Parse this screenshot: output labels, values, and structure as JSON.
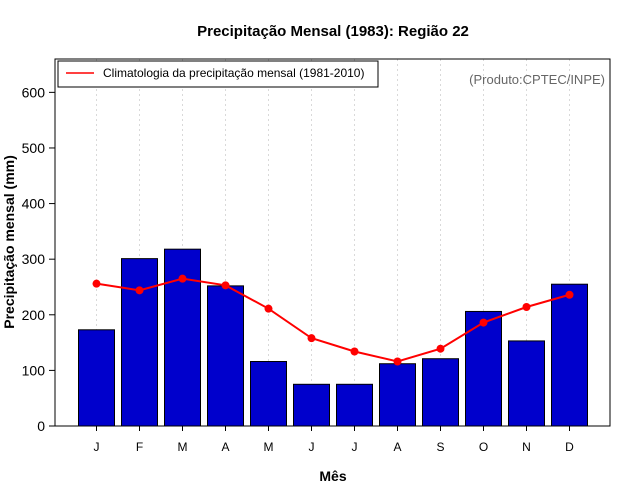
{
  "chart_data": {
    "type": "bar",
    "title": "Precipitação Mensal (1983): Região 22",
    "xlabel": "Mês",
    "ylabel": "Precipitação mensal (mm)",
    "categories": [
      "J",
      "F",
      "M",
      "A",
      "M",
      "J",
      "J",
      "A",
      "S",
      "O",
      "N",
      "D"
    ],
    "ylim": [
      0,
      660
    ],
    "yticks": [
      0,
      100,
      200,
      300,
      400,
      500,
      600
    ],
    "grid": "vertical dotted",
    "series": [
      {
        "name": "Precipitação mensal 1983",
        "type": "bar",
        "color": "#0000CC",
        "values": [
          173,
          301,
          318,
          252,
          116,
          75,
          75,
          112,
          121,
          206,
          153,
          255
        ]
      },
      {
        "name": "Climatologia da precipitação mensal (1981-2010)",
        "type": "line",
        "color": "#FF0000",
        "values": [
          256,
          244,
          265,
          253,
          211,
          158,
          134,
          116,
          139,
          186,
          214,
          236
        ]
      }
    ],
    "legend": {
      "position": "top-left",
      "entries": [
        "Climatologia da precipitação mensal (1981-2010)"
      ]
    },
    "annotation": "(Produto:CPTEC/INPE)"
  }
}
